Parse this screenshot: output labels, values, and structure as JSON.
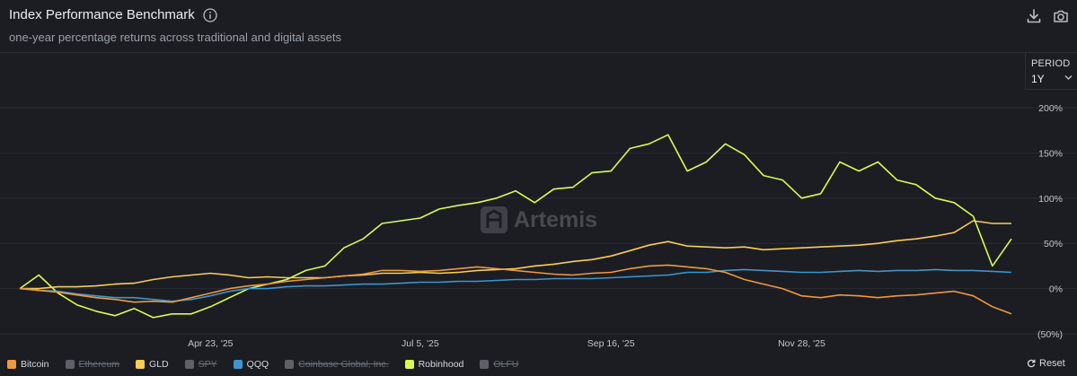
{
  "header": {
    "title": "Index Performance Benchmark",
    "subtitle": "one-year percentage returns across traditional and digital assets"
  },
  "period": {
    "label": "PERIOD",
    "value": "1Y"
  },
  "watermark": "Artemis",
  "reset_label": "Reset",
  "icons": {
    "info": "info-icon",
    "download": "download-icon",
    "camera": "camera-icon",
    "chevron": "chevron-down-icon",
    "reset": "reset-icon"
  },
  "legend": [
    {
      "name": "Bitcoin",
      "color": "#f0983e",
      "active": true
    },
    {
      "name": "Ethereum",
      "color": "#5e6168",
      "active": false
    },
    {
      "name": "GLD",
      "color": "#f8cd55",
      "active": true
    },
    {
      "name": "SPY",
      "color": "#5e6168",
      "active": false
    },
    {
      "name": "QQQ",
      "color": "#3d95cf",
      "active": true
    },
    {
      "name": "Coinbase Global, Inc.",
      "color": "#5e6168",
      "active": false
    },
    {
      "name": "Robinhood",
      "color": "#d8fd50",
      "active": true
    },
    {
      "name": "OLFU",
      "color": "#5e6168",
      "active": false
    }
  ],
  "chart_data": {
    "type": "line",
    "x_ticks": [
      "Apr 23, '25",
      "Jul 5, '25",
      "Sep 16, '25",
      "Nov 28, '25"
    ],
    "y_ticks": [
      "200%",
      "150%",
      "100%",
      "50%",
      "0%",
      "(50%)"
    ],
    "ylim": [
      -50,
      200
    ],
    "grid": "horizontal",
    "x": [
      "Feb 10, '25",
      "Feb 17, '25",
      "Feb 24, '25",
      "Mar 3, '25",
      "Mar 10, '25",
      "Mar 17, '25",
      "Mar 24, '25",
      "Mar 31, '25",
      "Apr 7, '25",
      "Apr 14, '25",
      "Apr 21, '25",
      "Apr 28, '25",
      "May 5, '25",
      "May 12, '25",
      "May 19, '25",
      "May 26, '25",
      "Jun 2, '25",
      "Jun 9, '25",
      "Jun 16, '25",
      "Jun 23, '25",
      "Jun 30, '25",
      "Jul 7, '25",
      "Jul 14, '25",
      "Jul 21, '25",
      "Jul 28, '25",
      "Aug 4, '25",
      "Aug 11, '25",
      "Aug 18, '25",
      "Aug 25, '25",
      "Sep 1, '25",
      "Sep 8, '25",
      "Sep 15, '25",
      "Sep 22, '25",
      "Sep 29, '25",
      "Oct 6, '25",
      "Oct 13, '25",
      "Oct 20, '25",
      "Oct 27, '25",
      "Nov 3, '25",
      "Nov 10, '25",
      "Nov 17, '25",
      "Nov 24, '25",
      "Dec 1, '25",
      "Dec 8, '25",
      "Dec 15, '25",
      "Dec 22, '25",
      "Dec 29, '25",
      "Jan 5, '26",
      "Jan 12, '26",
      "Jan 19, '26",
      "Jan 26, '26",
      "Feb 2, '26",
      "Feb 9, '26"
    ],
    "series": [
      {
        "name": "Robinhood",
        "color": "#d8fd50",
        "values": [
          0,
          15,
          -5,
          -18,
          -25,
          -30,
          -22,
          -32,
          -28,
          -28,
          -20,
          -10,
          0,
          5,
          10,
          20,
          25,
          45,
          55,
          72,
          75,
          78,
          88,
          92,
          95,
          100,
          108,
          95,
          110,
          112,
          128,
          130,
          155,
          160,
          170,
          130,
          140,
          160,
          148,
          125,
          120,
          100,
          105,
          140,
          130,
          140,
          120,
          115,
          100,
          95,
          80,
          25,
          55
        ]
      },
      {
        "name": "GLD",
        "color": "#f8cd55",
        "values": [
          0,
          0,
          2,
          2,
          3,
          5,
          6,
          10,
          13,
          15,
          17,
          15,
          12,
          13,
          12,
          12,
          12,
          14,
          15,
          17,
          17,
          18,
          17,
          18,
          20,
          21,
          22,
          25,
          27,
          30,
          32,
          36,
          42,
          48,
          52,
          47,
          46,
          45,
          46,
          43,
          44,
          45,
          46,
          47,
          48,
          50,
          53,
          55,
          58,
          62,
          75,
          72,
          72
        ]
      },
      {
        "name": "QQQ",
        "color": "#3d95cf",
        "values": [
          0,
          -2,
          -3,
          -6,
          -8,
          -10,
          -10,
          -12,
          -14,
          -12,
          -8,
          -3,
          0,
          0,
          2,
          3,
          3,
          4,
          5,
          5,
          6,
          7,
          7,
          8,
          8,
          9,
          10,
          10,
          11,
          11,
          11,
          12,
          13,
          14,
          15,
          18,
          18,
          20,
          21,
          20,
          19,
          18,
          18,
          19,
          20,
          19,
          20,
          20,
          21,
          20,
          20,
          19,
          18
        ]
      },
      {
        "name": "Bitcoin",
        "color": "#f0983e",
        "values": [
          0,
          -2,
          -4,
          -7,
          -10,
          -12,
          -15,
          -14,
          -15,
          -10,
          -5,
          0,
          3,
          5,
          8,
          10,
          12,
          14,
          16,
          20,
          20,
          19,
          20,
          22,
          24,
          22,
          20,
          18,
          16,
          15,
          17,
          18,
          22,
          25,
          26,
          24,
          22,
          18,
          10,
          5,
          0,
          -8,
          -10,
          -7,
          -8,
          -10,
          -8,
          -7,
          -5,
          -3,
          -8,
          -20,
          -28
        ]
      }
    ]
  }
}
